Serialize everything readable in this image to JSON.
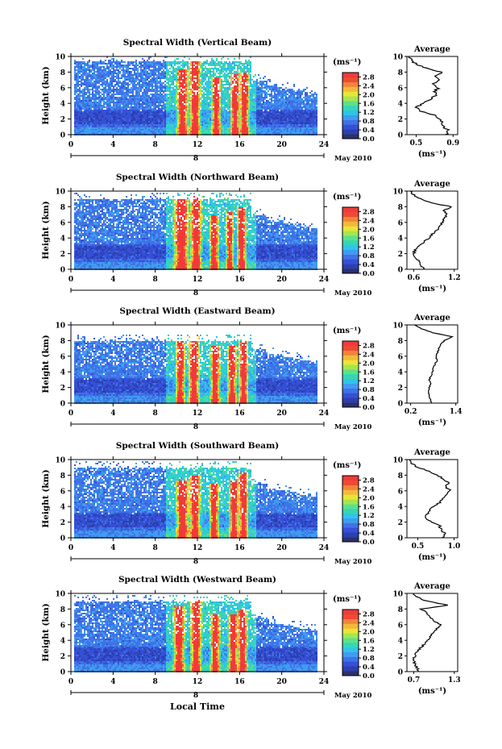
{
  "figure": {
    "xlabel": "Local Time",
    "day_label": "8",
    "month_label": "May 2010",
    "colorbar_unit": "(ms⁻¹)",
    "colorbar_ticks": [
      "0.0",
      "0.4",
      "0.8",
      "1.2",
      "1.6",
      "2.0",
      "2.4",
      "2.8"
    ],
    "colormap": [
      "#2b2f6e",
      "#2b3fae",
      "#3550d6",
      "#3f72e6",
      "#3f9cf0",
      "#2fc4ea",
      "#34d6b8",
      "#5ee08a",
      "#a6e64e",
      "#e6e638",
      "#f4b83a",
      "#f2843a",
      "#ef4a34",
      "#f03a3a"
    ],
    "average_title": "Average",
    "average_xlabel": "(ms⁻¹)"
  },
  "chart_data": [
    {
      "type": "heatmap",
      "title": "Spectral Width (Vertical Beam)",
      "ylabel": "Height (km)",
      "x_ticks": [
        0,
        4,
        8,
        12,
        16,
        20,
        24
      ],
      "x_range": [
        0,
        24
      ],
      "y_ticks": [
        0,
        2,
        4,
        6,
        8,
        10
      ],
      "y_range": [
        0,
        10
      ],
      "color_range": [
        0.0,
        3.0
      ],
      "top_km": 9.5,
      "spikes": [
        {
          "x": 10.5,
          "width": 0.6,
          "top": 8.5
        },
        {
          "x": 11.7,
          "width": 0.6,
          "top": 9.5
        },
        {
          "x": 13.7,
          "width": 0.5,
          "top": 7.5
        },
        {
          "x": 15.5,
          "width": 0.5,
          "top": 7.8
        },
        {
          "x": 16.4,
          "width": 0.5,
          "top": 8.0
        }
      ],
      "average": {
        "x_ticks": [
          "0.5",
          "0.9"
        ],
        "x_range": [
          0.4,
          0.95
        ],
        "y": [
          0,
          0.5,
          1,
          1.5,
          2,
          2.5,
          3,
          3.5,
          4,
          4.5,
          5,
          5.5,
          6,
          6.5,
          7,
          7.5,
          8,
          8.5,
          9,
          9.5,
          10
        ],
        "x": [
          0.82,
          0.85,
          0.8,
          0.78,
          0.75,
          0.7,
          0.55,
          0.5,
          0.58,
          0.65,
          0.72,
          0.7,
          0.74,
          0.68,
          0.75,
          0.72,
          0.78,
          0.6,
          0.5,
          0.45,
          0.42
        ]
      }
    },
    {
      "type": "heatmap",
      "title": "Spectral Width (Northward Beam)",
      "ylabel": "Height (km)",
      "x_ticks": [
        0,
        4,
        8,
        12,
        16,
        20,
        24
      ],
      "x_range": [
        0,
        24
      ],
      "y_ticks": [
        0,
        2,
        4,
        6,
        8,
        10
      ],
      "y_range": [
        0,
        10
      ],
      "color_range": [
        0.0,
        3.0
      ],
      "top_km": 9.0,
      "spikes": [
        {
          "x": 10.4,
          "width": 0.8,
          "top": 9.0
        },
        {
          "x": 11.8,
          "width": 0.6,
          "top": 9.4
        },
        {
          "x": 13.5,
          "width": 0.5,
          "top": 7.0
        },
        {
          "x": 15.0,
          "width": 0.4,
          "top": 7.5
        },
        {
          "x": 16.1,
          "width": 0.5,
          "top": 8.0
        }
      ],
      "average": {
        "x_ticks": [
          "0.6",
          "1.2"
        ],
        "x_range": [
          0.5,
          1.25
        ],
        "y": [
          0,
          0.5,
          1,
          1.5,
          2,
          2.5,
          3,
          3.5,
          4,
          4.5,
          5,
          5.5,
          6,
          6.5,
          7,
          7.5,
          8,
          8.5,
          9,
          9.5,
          10
        ],
        "x": [
          0.75,
          0.7,
          0.68,
          0.62,
          0.6,
          0.62,
          0.68,
          0.75,
          0.82,
          0.88,
          0.95,
          0.98,
          1.02,
          1.05,
          1.1,
          1.05,
          1.15,
          0.85,
          0.7,
          0.6,
          0.55
        ]
      }
    },
    {
      "type": "heatmap",
      "title": "Spectral Width (Eastward Beam)",
      "ylabel": "Height (km)",
      "x_ticks": [
        0,
        4,
        8,
        12,
        16,
        20,
        24
      ],
      "x_range": [
        0,
        24
      ],
      "y_ticks": [
        0,
        2,
        4,
        6,
        8,
        10
      ],
      "y_range": [
        0,
        10
      ],
      "color_range": [
        0.0,
        3.0
      ],
      "top_km": 8.0,
      "spikes": [
        {
          "x": 10.3,
          "width": 0.5,
          "top": 8.0
        },
        {
          "x": 11.6,
          "width": 0.6,
          "top": 9.0
        },
        {
          "x": 13.6,
          "width": 0.5,
          "top": 7.5
        },
        {
          "x": 15.2,
          "width": 0.5,
          "top": 7.5
        },
        {
          "x": 16.3,
          "width": 0.5,
          "top": 8.0
        }
      ],
      "average": {
        "x_ticks": [
          "0.2",
          "1.4"
        ],
        "x_range": [
          0.1,
          1.45
        ],
        "y": [
          0,
          0.5,
          1,
          1.5,
          2,
          2.5,
          3,
          3.5,
          4,
          4.5,
          5,
          5.5,
          6,
          6.5,
          7,
          7.5,
          8,
          8.5,
          9,
          9.5,
          10
        ],
        "x": [
          0.75,
          0.72,
          0.7,
          0.68,
          0.7,
          0.72,
          0.7,
          0.74,
          0.78,
          0.8,
          0.85,
          0.9,
          0.88,
          0.92,
          0.95,
          1.0,
          1.1,
          1.3,
          0.8,
          0.5,
          0.3
        ]
      }
    },
    {
      "type": "heatmap",
      "title": "Spectral Width (Southward Beam)",
      "ylabel": "Height (km)",
      "x_ticks": [
        0,
        4,
        8,
        12,
        16,
        20,
        24
      ],
      "x_range": [
        0,
        24
      ],
      "y_ticks": [
        0,
        2,
        4,
        6,
        8,
        10
      ],
      "y_range": [
        0,
        10
      ],
      "color_range": [
        0.0,
        3.0
      ],
      "top_km": 9.0,
      "spikes": [
        {
          "x": 10.5,
          "width": 0.7,
          "top": 7.5
        },
        {
          "x": 11.7,
          "width": 0.6,
          "top": 8.0
        },
        {
          "x": 13.5,
          "width": 0.5,
          "top": 7.0
        },
        {
          "x": 15.4,
          "width": 0.5,
          "top": 7.5
        },
        {
          "x": 16.3,
          "width": 0.5,
          "top": 8.5
        }
      ],
      "average": {
        "x_ticks": [
          "0.5",
          "1.0"
        ],
        "x_range": [
          0.35,
          1.05
        ],
        "y": [
          0,
          0.5,
          1,
          1.5,
          2,
          2.5,
          3,
          3.5,
          4,
          4.5,
          5,
          5.5,
          6,
          6.5,
          7,
          7.5,
          8,
          8.5,
          9,
          9.5,
          10
        ],
        "x": [
          0.85,
          0.88,
          0.82,
          0.8,
          0.7,
          0.6,
          0.62,
          0.66,
          0.72,
          0.8,
          0.85,
          0.9,
          0.95,
          0.88,
          0.92,
          0.85,
          0.78,
          0.65,
          0.5,
          0.42,
          0.38
        ]
      }
    },
    {
      "type": "heatmap",
      "title": "Spectral Width (Westward Beam)",
      "ylabel": "Height (km)",
      "x_ticks": [
        0,
        4,
        8,
        12,
        16,
        20,
        24
      ],
      "x_range": [
        0,
        24
      ],
      "y_ticks": [
        0,
        2,
        4,
        6,
        8,
        10
      ],
      "y_range": [
        0,
        10
      ],
      "color_range": [
        0.0,
        3.0
      ],
      "top_km": 9.0,
      "spikes": [
        {
          "x": 10.2,
          "width": 0.6,
          "top": 8.5
        },
        {
          "x": 11.8,
          "width": 0.6,
          "top": 9.5
        },
        {
          "x": 13.6,
          "width": 0.5,
          "top": 7.5
        },
        {
          "x": 15.3,
          "width": 0.5,
          "top": 7.5
        },
        {
          "x": 16.2,
          "width": 0.5,
          "top": 8.0
        }
      ],
      "average": {
        "x_ticks": [
          "0.7",
          "1.3"
        ],
        "x_range": [
          0.6,
          1.35
        ],
        "y": [
          0,
          0.5,
          1,
          1.5,
          2,
          2.5,
          3,
          3.5,
          4,
          4.5,
          5,
          5.5,
          6,
          6.5,
          7,
          7.5,
          8,
          8.5,
          9,
          9.5,
          10
        ],
        "x": [
          0.78,
          0.75,
          0.72,
          0.7,
          0.72,
          0.75,
          0.8,
          0.85,
          0.9,
          0.95,
          1.0,
          1.05,
          1.1,
          1.0,
          0.95,
          0.9,
          0.8,
          1.2,
          0.9,
          0.75,
          0.7
        ]
      }
    }
  ]
}
